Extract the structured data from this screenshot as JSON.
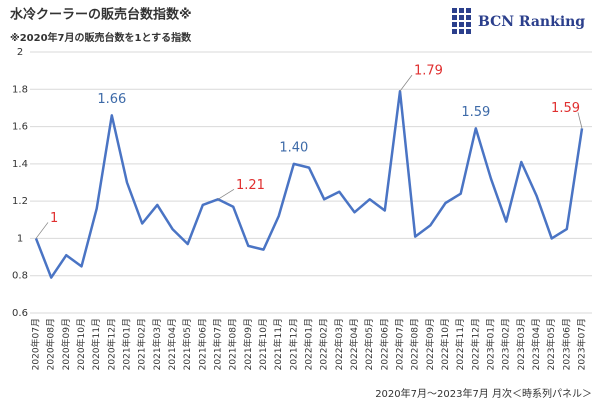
{
  "chart_data": {
    "type": "line",
    "title": "水冷クーラーの販売台数指数※",
    "subtitle": "※2020年7月の販売台数を1とする指数",
    "logo": "BCN Ranking",
    "footer": "2020年7月～2023年7月 月次＜時系列パネル＞",
    "categories": [
      "2020年07月",
      "2020年08月",
      "2020年09月",
      "2020年10月",
      "2020年11月",
      "2020年12月",
      "2021年01月",
      "2021年02月",
      "2021年03月",
      "2021年04月",
      "2021年05月",
      "2021年06月",
      "2021年07月",
      "2021年08月",
      "2021年09月",
      "2021年10月",
      "2021年11月",
      "2021年12月",
      "2022年01月",
      "2022年02月",
      "2022年03月",
      "2022年04月",
      "2022年05月",
      "2022年06月",
      "2022年07月",
      "2022年08月",
      "2022年09月",
      "2022年10月",
      "2022年11月",
      "2022年12月",
      "2023年01月",
      "2023年02月",
      "2023年03月",
      "2023年04月",
      "2023年05月",
      "2023年06月",
      "2023年07月"
    ],
    "values": [
      1,
      0.79,
      0.91,
      0.85,
      1.16,
      1.66,
      1.3,
      1.08,
      1.18,
      1.05,
      0.97,
      1.18,
      1.21,
      1.17,
      0.96,
      0.94,
      1.12,
      1.4,
      1.38,
      1.21,
      1.25,
      1.14,
      1.21,
      1.15,
      1.79,
      1.01,
      1.07,
      1.19,
      1.24,
      1.59,
      1.32,
      1.09,
      1.41,
      1.23,
      1.0,
      1.05,
      1.59
    ],
    "value_labels": [
      "1",
      null,
      null,
      null,
      null,
      "1.66",
      null,
      null,
      null,
      null,
      null,
      null,
      "1.21",
      null,
      null,
      null,
      null,
      "1.40",
      null,
      null,
      null,
      null,
      null,
      null,
      "1.79",
      null,
      null,
      null,
      null,
      "1.59",
      null,
      null,
      null,
      null,
      null,
      null,
      "1.59"
    ],
    "value_label_colors": [
      "#e03030",
      null,
      null,
      null,
      null,
      "#3d6aa8",
      null,
      null,
      null,
      null,
      null,
      null,
      "#e03030",
      null,
      null,
      null,
      null,
      "#3d6aa8",
      null,
      null,
      null,
      null,
      null,
      null,
      "#e03030",
      null,
      null,
      null,
      null,
      "#3d6aa8",
      null,
      null,
      null,
      null,
      null,
      null,
      "#e03030"
    ],
    "color": "#4a74c4",
    "ylim": [
      0.6,
      2
    ],
    "yticks": [
      0.6,
      0.8,
      1,
      1.2,
      1.4,
      1.6,
      1.8,
      2
    ],
    "grid": true
  }
}
